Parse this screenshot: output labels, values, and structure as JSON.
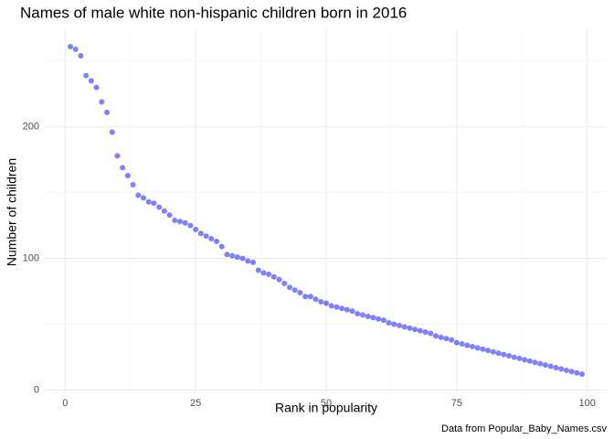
{
  "chart_data": {
    "type": "scatter",
    "title": "Names of male white non-hispanic children born in 2016",
    "x_label": "Rank in popularity",
    "y_label": "Number of children",
    "caption": "Data from Popular_Baby_Names.csv",
    "color": "#0000ff",
    "alpha": 0.5,
    "grid": true,
    "xlim": [
      -3.9,
      103.9
    ],
    "xticks": [
      0,
      25,
      50,
      75,
      100
    ],
    "ylim": [
      -2.5,
      273.5
    ],
    "yticks": [
      0,
      100,
      200
    ],
    "x": [
      1,
      2,
      3,
      4,
      5,
      6,
      7,
      8,
      9,
      10,
      11,
      12,
      13,
      14,
      15,
      16,
      17,
      18,
      19,
      20,
      21,
      22,
      23,
      24,
      25,
      26,
      27,
      28,
      29,
      30,
      31,
      32,
      33,
      34,
      35,
      36,
      37,
      38,
      39,
      40,
      41,
      42,
      43,
      44,
      45,
      46,
      47,
      48,
      49,
      50,
      51,
      52,
      53,
      54,
      55,
      56,
      57,
      58,
      59,
      60,
      61,
      62,
      63,
      64,
      65,
      66,
      67,
      68,
      69,
      70,
      71,
      72,
      73,
      74,
      75,
      76,
      77,
      78,
      79,
      80,
      81,
      82,
      83,
      84,
      85,
      86,
      87,
      88,
      89,
      90,
      91,
      92,
      93,
      94,
      95,
      96,
      97,
      98,
      99
    ],
    "values": [
      261,
      259,
      254,
      239,
      235,
      230,
      219,
      211,
      196,
      178,
      169,
      163,
      156,
      148,
      146,
      143,
      142,
      139,
      136,
      133,
      129,
      128,
      127,
      125,
      122,
      119,
      117,
      115,
      113,
      109,
      103,
      102,
      101,
      100,
      98,
      97,
      91,
      89,
      88,
      86,
      84,
      81,
      78,
      76,
      74,
      71,
      71,
      69,
      67,
      66,
      64,
      63,
      62,
      61,
      60,
      58,
      57,
      56,
      55,
      54,
      53,
      51,
      50,
      49,
      48,
      47,
      46,
      45,
      44,
      43,
      41,
      40,
      39,
      38,
      36,
      35,
      34,
      33,
      32,
      31,
      30,
      29,
      28,
      27,
      26,
      25,
      24,
      23,
      22,
      21,
      20,
      19,
      18,
      17,
      16,
      15,
      14,
      13,
      12
    ]
  }
}
